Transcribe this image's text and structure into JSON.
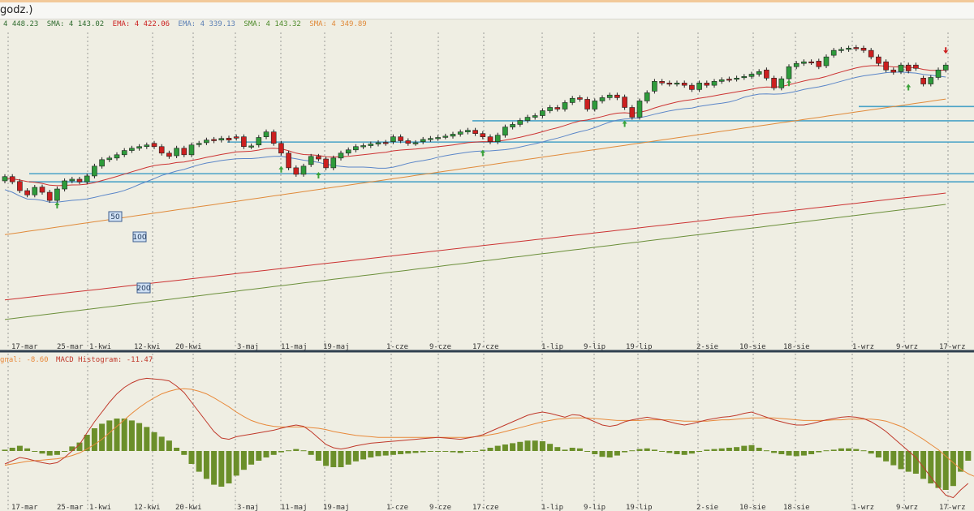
{
  "window": {
    "title": "godz.)"
  },
  "indicators": [
    {
      "text": "4 448.23",
      "color": "#2e6b2e"
    },
    {
      "text": "SMA: 4 143.02",
      "color": "#2e6b2e"
    },
    {
      "text": "EMA: 4 422.06",
      "color": "#cc2222"
    },
    {
      "text": "EMA: 4 339.13",
      "color": "#5b7fb5"
    },
    {
      "text": "SMA: 4 143.32",
      "color": "#4d8a2a"
    },
    {
      "text": "SMA: 4 349.89",
      "color": "#e08a3a"
    }
  ],
  "macd_legend": {
    "signal": "gnal: -8.60",
    "hist": "MACD Histogram: -11.47"
  },
  "ma_labels": [
    "50",
    "100",
    "200"
  ],
  "colors": {
    "up": "#2e9b3b",
    "down": "#cc1f1f",
    "sma50": "#5b86c8",
    "ema": "#cc3333",
    "sma100": "#e08a3a",
    "sma200": "#6b8f3a",
    "hline": "#4aa3c7",
    "macd": "#c0392b",
    "signal": "#e8893a",
    "hist": "#6b8f2a",
    "arrow": "#3aa33a",
    "grid": "#777777",
    "sep": "#2f3f4f"
  },
  "chart_data": {
    "type": "candlestick",
    "x_labels": [
      "17-mar",
      "25-mar",
      "1-kwi",
      "12-kwi",
      "20-kwi",
      "3-maj",
      "11-maj",
      "19-maj",
      "1-cze",
      "9-cze",
      "17-cze",
      "1-lip",
      "9-lip",
      "19-lip",
      "2-sie",
      "10-sie",
      "18-sie",
      "1-wrz",
      "9-wrz",
      "17-wrz"
    ],
    "price_ylim": [
      4740,
      5680
    ],
    "macd_ylim": [
      -80,
      130
    ],
    "candles": [
      {
        "o": 5225,
        "c": 5238
      },
      {
        "o": 5238,
        "c": 5222
      },
      {
        "o": 5223,
        "c": 5195
      },
      {
        "o": 5195,
        "c": 5182
      },
      {
        "o": 5182,
        "c": 5205
      },
      {
        "o": 5206,
        "c": 5190
      },
      {
        "o": 5190,
        "c": 5165
      },
      {
        "o": 5165,
        "c": 5200
      },
      {
        "o": 5200,
        "c": 5225
      },
      {
        "o": 5225,
        "c": 5230
      },
      {
        "o": 5230,
        "c": 5222
      },
      {
        "o": 5222,
        "c": 5240
      },
      {
        "o": 5240,
        "c": 5270
      },
      {
        "o": 5270,
        "c": 5290
      },
      {
        "o": 5290,
        "c": 5295
      },
      {
        "o": 5295,
        "c": 5305
      },
      {
        "o": 5305,
        "c": 5318
      },
      {
        "o": 5318,
        "c": 5325
      },
      {
        "o": 5325,
        "c": 5330
      },
      {
        "o": 5330,
        "c": 5335
      },
      {
        "o": 5340,
        "c": 5330
      },
      {
        "o": 5330,
        "c": 5310
      },
      {
        "o": 5310,
        "c": 5300
      },
      {
        "o": 5302,
        "c": 5325
      },
      {
        "o": 5325,
        "c": 5305
      },
      {
        "o": 5305,
        "c": 5335
      },
      {
        "o": 5336,
        "c": 5340
      },
      {
        "o": 5342,
        "c": 5350
      },
      {
        "o": 5352,
        "c": 5348
      },
      {
        "o": 5350,
        "c": 5355
      },
      {
        "o": 5356,
        "c": 5350
      },
      {
        "o": 5360,
        "c": 5356
      },
      {
        "o": 5360,
        "c": 5330
      },
      {
        "o": 5330,
        "c": 5332
      },
      {
        "o": 5335,
        "c": 5358
      },
      {
        "o": 5360,
        "c": 5375
      },
      {
        "o": 5375,
        "c": 5340
      },
      {
        "o": 5340,
        "c": 5310
      },
      {
        "o": 5310,
        "c": 5265
      },
      {
        "o": 5265,
        "c": 5245
      },
      {
        "o": 5245,
        "c": 5270
      },
      {
        "o": 5275,
        "c": 5300
      },
      {
        "o": 5300,
        "c": 5292
      },
      {
        "o": 5292,
        "c": 5265
      },
      {
        "o": 5265,
        "c": 5295
      },
      {
        "o": 5295,
        "c": 5310
      },
      {
        "o": 5310,
        "c": 5320
      },
      {
        "o": 5320,
        "c": 5330
      },
      {
        "o": 5330,
        "c": 5333
      },
      {
        "o": 5333,
        "c": 5338
      },
      {
        "o": 5338,
        "c": 5342
      },
      {
        "o": 5343,
        "c": 5340
      },
      {
        "o": 5345,
        "c": 5360
      },
      {
        "o": 5360,
        "c": 5348
      },
      {
        "o": 5348,
        "c": 5340
      },
      {
        "o": 5340,
        "c": 5342
      },
      {
        "o": 5345,
        "c": 5352
      },
      {
        "o": 5352,
        "c": 5355
      },
      {
        "o": 5355,
        "c": 5358
      },
      {
        "o": 5360,
        "c": 5362
      },
      {
        "o": 5362,
        "c": 5368
      },
      {
        "o": 5368,
        "c": 5375
      },
      {
        "o": 5375,
        "c": 5380
      },
      {
        "o": 5380,
        "c": 5370
      },
      {
        "o": 5370,
        "c": 5360
      },
      {
        "o": 5360,
        "c": 5345
      },
      {
        "o": 5345,
        "c": 5365
      },
      {
        "o": 5365,
        "c": 5390
      },
      {
        "o": 5390,
        "c": 5398
      },
      {
        "o": 5398,
        "c": 5410
      },
      {
        "o": 5410,
        "c": 5420
      },
      {
        "o": 5420,
        "c": 5425
      },
      {
        "o": 5425,
        "c": 5440
      },
      {
        "o": 5440,
        "c": 5450
      },
      {
        "o": 5450,
        "c": 5445
      },
      {
        "o": 5445,
        "c": 5465
      },
      {
        "o": 5465,
        "c": 5478
      },
      {
        "o": 5480,
        "c": 5475
      },
      {
        "o": 5475,
        "c": 5445
      },
      {
        "o": 5445,
        "c": 5470
      },
      {
        "o": 5470,
        "c": 5480
      },
      {
        "o": 5480,
        "c": 5488
      },
      {
        "o": 5488,
        "c": 5480
      },
      {
        "o": 5482,
        "c": 5450
      },
      {
        "o": 5450,
        "c": 5420
      },
      {
        "o": 5420,
        "c": 5470
      },
      {
        "o": 5470,
        "c": 5495
      },
      {
        "o": 5500,
        "c": 5530
      },
      {
        "o": 5530,
        "c": 5525
      },
      {
        "o": 5525,
        "c": 5522
      },
      {
        "o": 5522,
        "c": 5525
      },
      {
        "o": 5525,
        "c": 5518
      },
      {
        "o": 5518,
        "c": 5505
      },
      {
        "o": 5505,
        "c": 5525
      },
      {
        "o": 5525,
        "c": 5518
      },
      {
        "o": 5518,
        "c": 5530
      },
      {
        "o": 5530,
        "c": 5535
      },
      {
        "o": 5537,
        "c": 5535
      },
      {
        "o": 5537,
        "c": 5540
      },
      {
        "o": 5542,
        "c": 5545
      },
      {
        "o": 5545,
        "c": 5552
      },
      {
        "o": 5552,
        "c": 5560
      },
      {
        "o": 5565,
        "c": 5540
      },
      {
        "o": 5540,
        "c": 5510
      },
      {
        "o": 5510,
        "c": 5538
      },
      {
        "o": 5538,
        "c": 5575
      },
      {
        "o": 5575,
        "c": 5585
      },
      {
        "o": 5585,
        "c": 5590
      },
      {
        "o": 5590,
        "c": 5588
      },
      {
        "o": 5592,
        "c": 5575
      },
      {
        "o": 5578,
        "c": 5605
      },
      {
        "o": 5610,
        "c": 5625
      },
      {
        "o": 5625,
        "c": 5628
      },
      {
        "o": 5628,
        "c": 5632
      },
      {
        "o": 5634,
        "c": 5630
      },
      {
        "o": 5632,
        "c": 5625
      },
      {
        "o": 5625,
        "c": 5605
      },
      {
        "o": 5605,
        "c": 5585
      },
      {
        "o": 5590,
        "c": 5565
      },
      {
        "o": 5565,
        "c": 5558
      },
      {
        "o": 5560,
        "c": 5580
      },
      {
        "o": 5580,
        "c": 5562
      },
      {
        "o": 5580,
        "c": 5570
      },
      {
        "o": 5540,
        "c": 5522
      },
      {
        "o": 5522,
        "c": 5542
      },
      {
        "o": 5542,
        "c": 5565
      },
      {
        "o": 5565,
        "c": 5580
      }
    ],
    "macd": [
      -20,
      -15,
      -10,
      -12,
      -15,
      -18,
      -20,
      -18,
      -10,
      0,
      10,
      28,
      45,
      60,
      75,
      88,
      98,
      105,
      110,
      112,
      111,
      110,
      108,
      100,
      90,
      75,
      60,
      45,
      30,
      20,
      18,
      22,
      24,
      26,
      28,
      30,
      32,
      35,
      38,
      40,
      38,
      30,
      20,
      10,
      5,
      3,
      5,
      8,
      10,
      12,
      13,
      14,
      15,
      16,
      17,
      18,
      19,
      20,
      21,
      20,
      19,
      18,
      20,
      22,
      25,
      30,
      35,
      40,
      45,
      50,
      55,
      58,
      60,
      58,
      55,
      52,
      56,
      55,
      50,
      45,
      40,
      38,
      40,
      45,
      48,
      50,
      52,
      50,
      48,
      45,
      42,
      40,
      42,
      45,
      48,
      50,
      52,
      53,
      55,
      58,
      60,
      56,
      52,
      48,
      45,
      42,
      40,
      40,
      42,
      45,
      48,
      50,
      52,
      53,
      52,
      50,
      45,
      38,
      30,
      20,
      10,
      0,
      -10,
      -25,
      -40,
      -55,
      -68,
      -72,
      -60,
      -50
    ],
    "signal": [
      -22,
      -20,
      -18,
      -16,
      -15,
      -14,
      -13,
      -12,
      -10,
      -7,
      -3,
      3,
      10,
      18,
      28,
      38,
      48,
      58,
      67,
      75,
      82,
      88,
      92,
      95,
      96,
      95,
      92,
      88,
      82,
      75,
      68,
      60,
      53,
      47,
      43,
      40,
      38,
      37,
      37,
      37,
      37,
      36,
      35,
      33,
      30,
      28,
      26,
      24,
      23,
      22,
      21,
      21,
      21,
      21,
      21,
      21,
      21,
      21,
      21,
      21,
      21,
      21,
      21,
      22,
      23,
      25,
      27,
      30,
      33,
      36,
      39,
      42,
      45,
      47,
      49,
      50,
      51,
      51,
      51,
      50,
      49,
      48,
      47,
      47,
      47,
      47,
      48,
      48,
      48,
      48,
      47,
      46,
      46,
      46,
      46,
      47,
      48,
      48,
      49,
      50,
      51,
      51,
      51,
      51,
      50,
      49,
      48,
      47,
      47,
      47,
      47,
      48,
      48,
      49,
      49,
      49,
      49,
      48,
      46,
      42,
      38,
      32,
      25,
      18,
      10,
      2,
      -8,
      -18,
      -28,
      -35,
      -40
    ]
  }
}
